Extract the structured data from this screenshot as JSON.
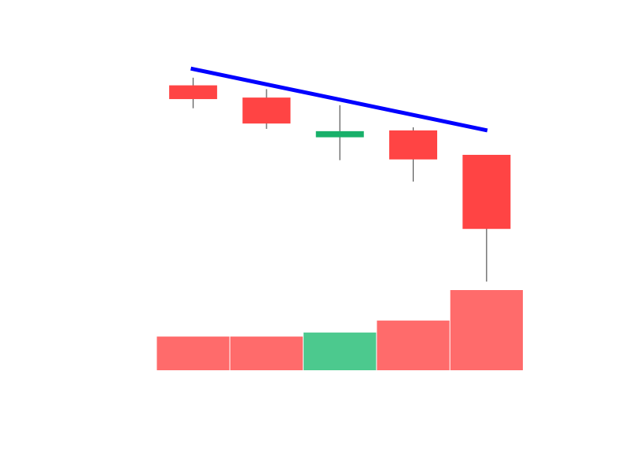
{
  "chart_data": {
    "type": "candlestick",
    "candles": [
      {
        "open": 10.0,
        "high": 10.1,
        "low": 9.7,
        "close": 9.82
      },
      {
        "open": 9.84,
        "high": 9.95,
        "low": 9.43,
        "close": 9.5
      },
      {
        "open": 9.32,
        "high": 9.74,
        "low": 9.02,
        "close": 9.4
      },
      {
        "open": 9.41,
        "high": 9.45,
        "low": 8.74,
        "close": 9.03
      },
      {
        "open": 9.09,
        "high": 9.09,
        "low": 7.43,
        "close": 8.12
      }
    ],
    "volume": [
      42,
      42,
      47,
      62,
      100
    ],
    "trendline": {
      "from": {
        "index": 0,
        "value": 10.22
      },
      "to": {
        "index": 4,
        "value": 9.41
      }
    },
    "ylim": [
      7.0,
      10.5
    ],
    "volume_max": 100,
    "colors": {
      "up": "#18b06a",
      "down": "#ff4444",
      "volume_up": "#4cc98e",
      "volume_down": "#ff6b6b",
      "wick": "#555555",
      "trendline": "#0000ff"
    },
    "axes_visible": false,
    "grid": false
  }
}
